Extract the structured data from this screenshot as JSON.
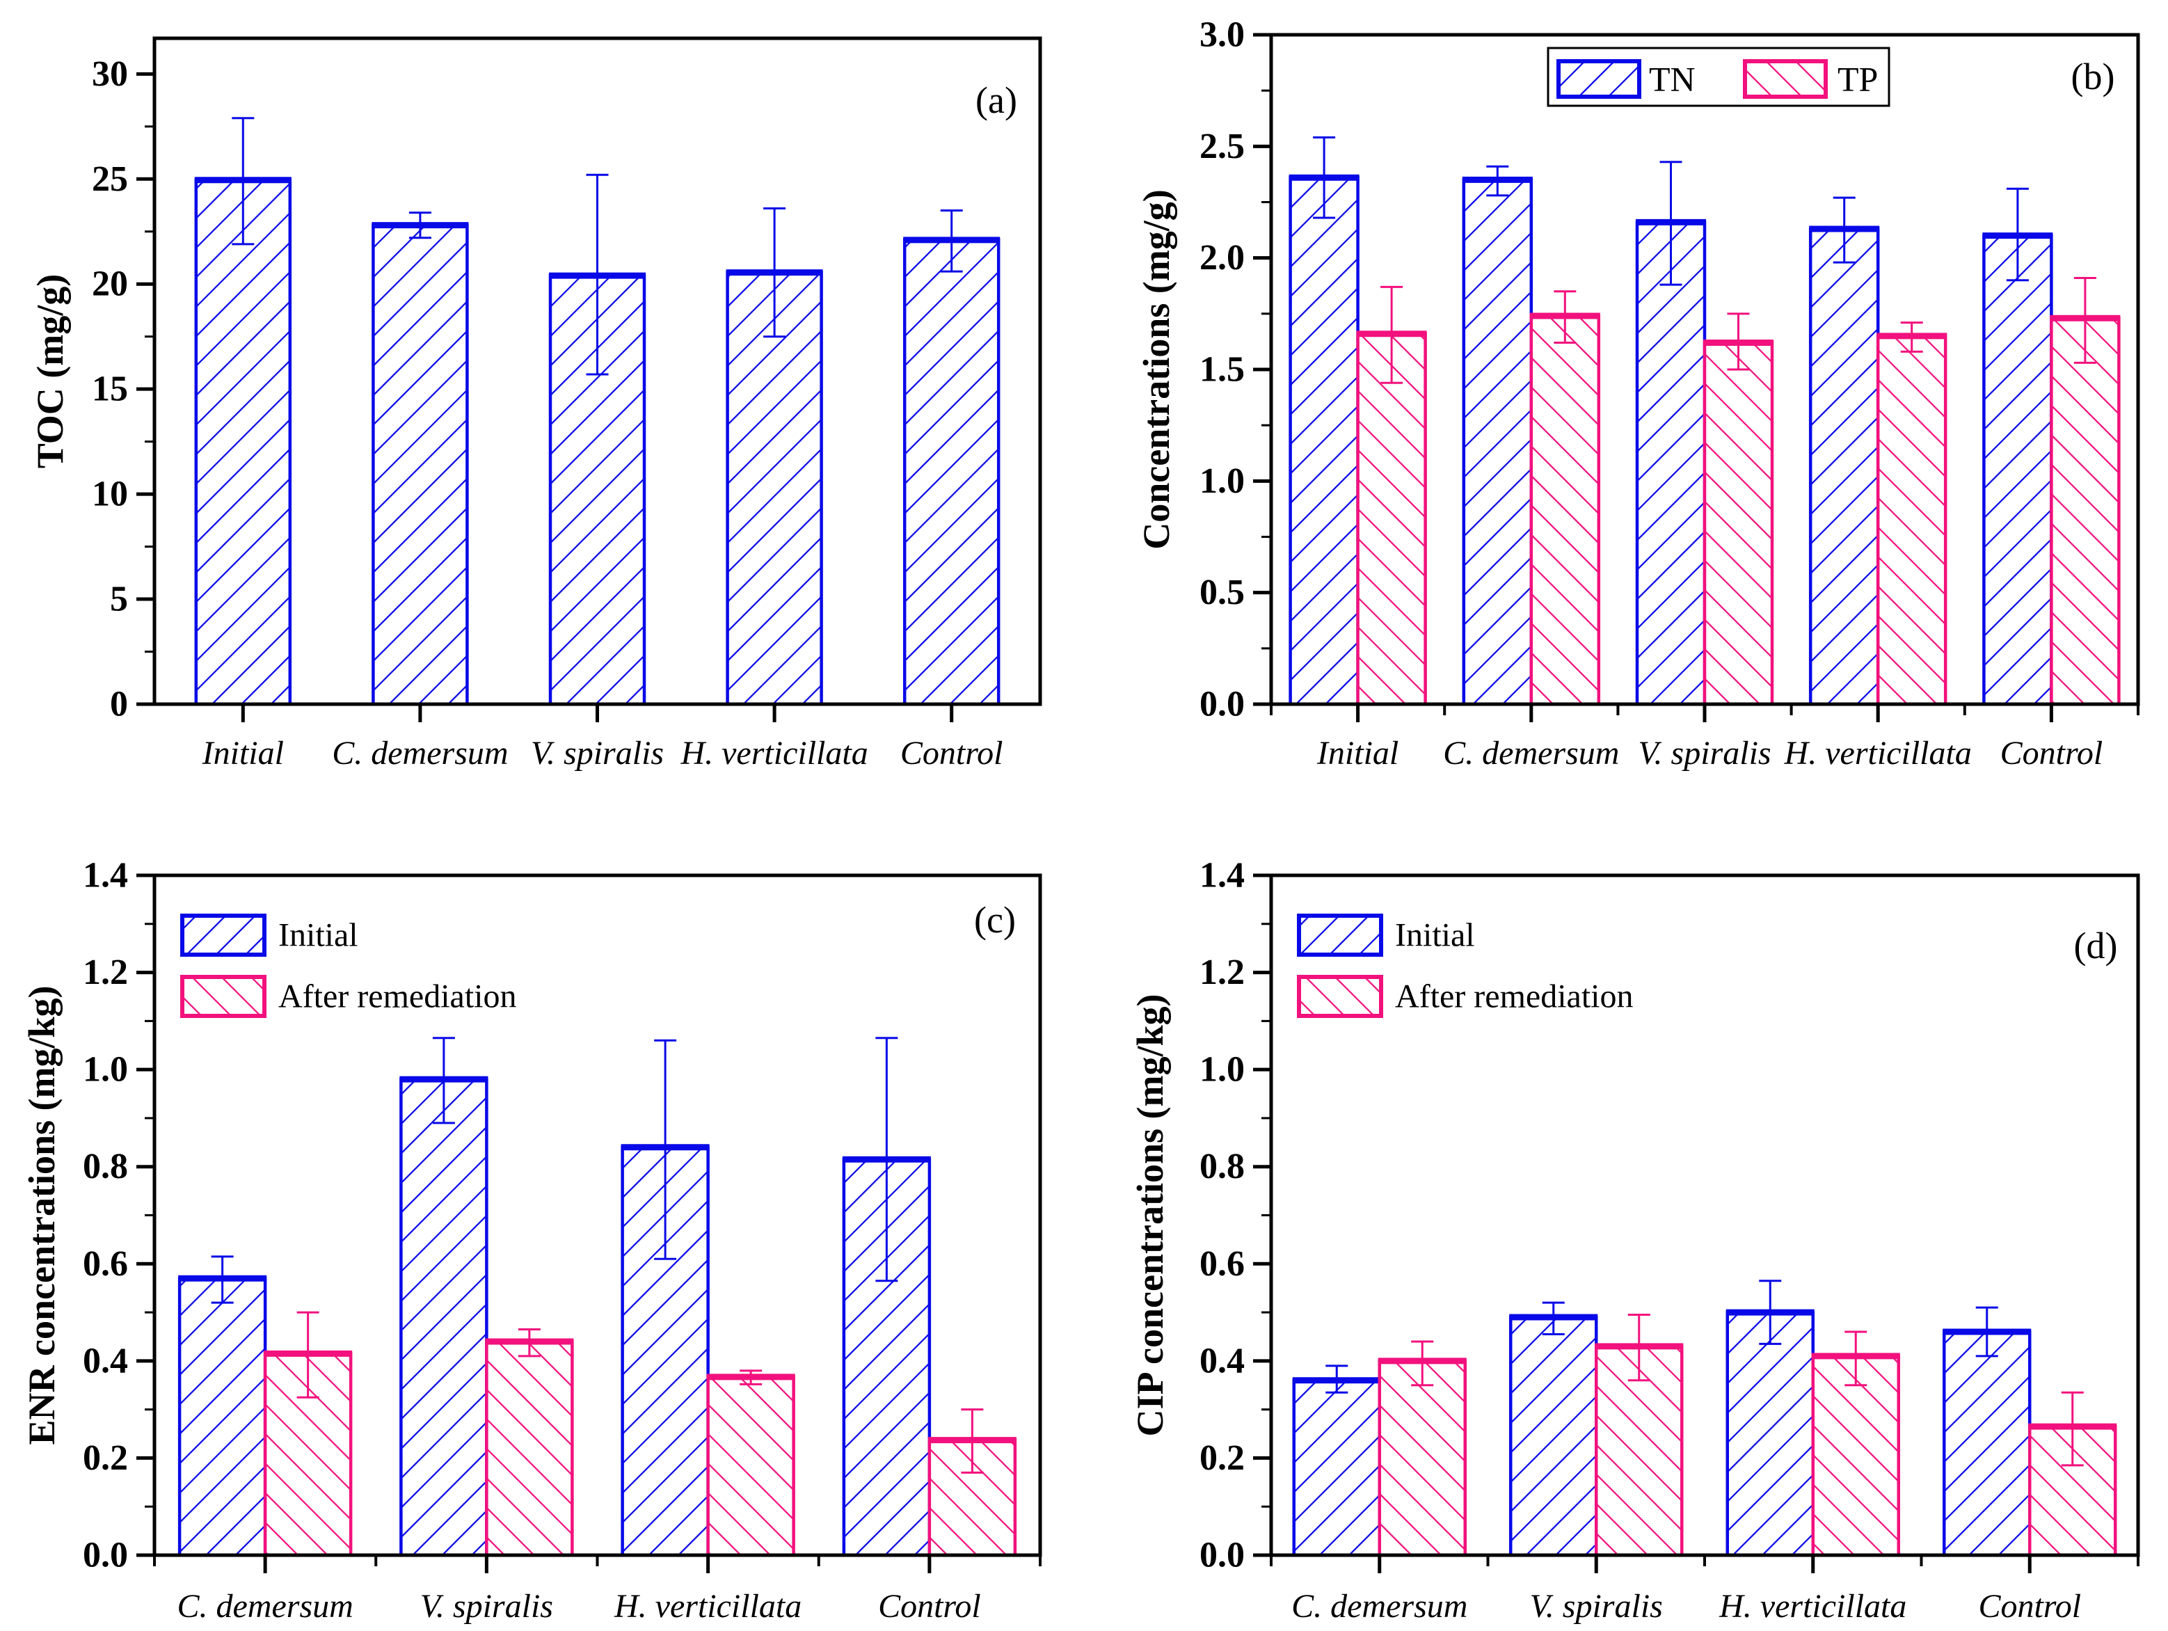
{
  "figure": {
    "background": "#ffffff",
    "axis_color": "#000000",
    "accent_blue": "#0909E8",
    "accent_pink": "#F2117D"
  },
  "chart_data": [
    {
      "type": "bar",
      "panel_label": "(a)",
      "title": "",
      "xlabel": "",
      "ylabel": "TOC (mg/g)",
      "ylim": [
        0,
        31.7
      ],
      "ytick_step": 5,
      "ytick_minor_step": 2.5,
      "ytick_decimals": 0,
      "grid": false,
      "x_boundary_ticks": false,
      "categories": [
        "Initial",
        "C. demersum",
        "V. spiralis",
        "H. verticillata",
        "Control"
      ],
      "legend": null,
      "series": [
        {
          "name": "TOC",
          "color": "#0909E8",
          "hatch": "forward",
          "values": [
            24.95,
            22.8,
            20.4,
            20.55,
            22.1
          ],
          "err_lo": [
            21.9,
            22.2,
            15.7,
            17.5,
            20.6
          ],
          "err_hi": [
            27.9,
            23.4,
            25.2,
            23.6,
            23.5
          ]
        }
      ]
    },
    {
      "type": "bar",
      "panel_label": "(b)",
      "title": "",
      "xlabel": "",
      "ylabel": "Concentrations (mg/g)",
      "ylim": [
        0,
        3.0
      ],
      "ytick_step": 0.5,
      "ytick_minor_step": 0.25,
      "ytick_decimals": 1,
      "grid": false,
      "x_boundary_ticks": true,
      "categories": [
        "Initial",
        "C. demersum",
        "V. spiralis",
        "H. verticillata",
        "Control"
      ],
      "legend": {
        "style": "boxed-horizontal",
        "position": "top-center"
      },
      "series": [
        {
          "name": "TN",
          "color": "#0909E8",
          "hatch": "forward",
          "values": [
            2.36,
            2.35,
            2.16,
            2.13,
            2.1
          ],
          "err_lo": [
            2.18,
            2.28,
            1.88,
            1.98,
            1.9
          ],
          "err_hi": [
            2.54,
            2.41,
            2.43,
            2.27,
            2.31
          ]
        },
        {
          "name": "TP",
          "color": "#F2117D",
          "hatch": "backward",
          "values": [
            1.66,
            1.74,
            1.62,
            1.65,
            1.73
          ],
          "err_lo": [
            1.44,
            1.62,
            1.5,
            1.58,
            1.53
          ],
          "err_hi": [
            1.87,
            1.85,
            1.75,
            1.71,
            1.91
          ]
        }
      ]
    },
    {
      "type": "bar",
      "panel_label": "(c)",
      "title": "",
      "xlabel": "",
      "ylabel": "ENR concentrations (mg/kg)",
      "ylim": [
        0,
        1.4
      ],
      "ytick_step": 0.2,
      "ytick_minor_step": 0.1,
      "ytick_decimals": 1,
      "grid": false,
      "x_boundary_ticks": true,
      "categories": [
        "C. demersum",
        "V. spiralis",
        "H. verticillata",
        "Control"
      ],
      "legend": {
        "style": "plain-vertical",
        "position": "top-left"
      },
      "series": [
        {
          "name": "Initial",
          "color": "#0909E8",
          "hatch": "forward",
          "values": [
            0.57,
            0.98,
            0.84,
            0.815
          ],
          "err_lo": [
            0.52,
            0.89,
            0.61,
            0.565
          ],
          "err_hi": [
            0.615,
            1.065,
            1.06,
            1.065
          ]
        },
        {
          "name": "After remediation",
          "color": "#F2117D",
          "hatch": "backward",
          "values": [
            0.415,
            0.44,
            0.367,
            0.237
          ],
          "err_lo": [
            0.325,
            0.41,
            0.352,
            0.17
          ],
          "err_hi": [
            0.5,
            0.465,
            0.38,
            0.3
          ]
        }
      ]
    },
    {
      "type": "bar",
      "panel_label": "(d)",
      "title": "",
      "xlabel": "",
      "ylabel": "CIP concentrations (mg/kg)",
      "ylim": [
        0,
        1.4
      ],
      "ytick_step": 0.2,
      "ytick_minor_step": 0.1,
      "ytick_decimals": 1,
      "grid": false,
      "x_boundary_ticks": true,
      "categories": [
        "C. demersum",
        "V. spiralis",
        "H. verticillata",
        "Control"
      ],
      "legend": {
        "style": "plain-vertical",
        "position": "top-left"
      },
      "series": [
        {
          "name": "Initial",
          "color": "#0909E8",
          "hatch": "forward",
          "values": [
            0.36,
            0.49,
            0.5,
            0.46
          ],
          "err_lo": [
            0.335,
            0.455,
            0.435,
            0.41
          ],
          "err_hi": [
            0.39,
            0.52,
            0.565,
            0.51
          ]
        },
        {
          "name": "After remediation",
          "color": "#F2117D",
          "hatch": "backward",
          "values": [
            0.4,
            0.43,
            0.41,
            0.265
          ],
          "err_lo": [
            0.35,
            0.36,
            0.35,
            0.185
          ],
          "err_hi": [
            0.44,
            0.495,
            0.46,
            0.335
          ]
        }
      ]
    }
  ]
}
